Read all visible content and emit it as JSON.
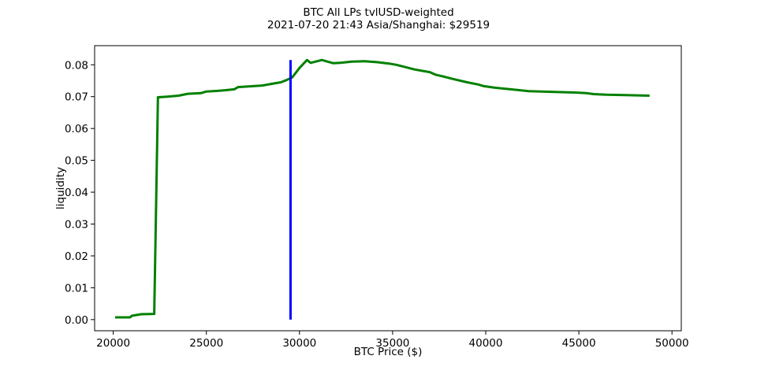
{
  "chart_data": {
    "type": "line",
    "title": "BTC All LPs tvlUSD-weighted",
    "subtitle": "2021-07-20 21:43 Asia/Shanghai: $29519",
    "xlabel": "BTC Price ($)",
    "ylabel": "liquidity",
    "xlim": [
      19000,
      50500
    ],
    "ylim": [
      -0.0035,
      0.086
    ],
    "xticks": [
      20000,
      25000,
      30000,
      35000,
      40000,
      45000,
      50000
    ],
    "yticks": [
      0.0,
      0.01,
      0.02,
      0.03,
      0.04,
      0.05,
      0.06,
      0.07,
      0.08
    ],
    "xtick_labels": [
      "20000",
      "25000",
      "30000",
      "35000",
      "40000",
      "45000",
      "50000"
    ],
    "ytick_labels": [
      "0.00",
      "0.01",
      "0.02",
      "0.03",
      "0.04",
      "0.05",
      "0.06",
      "0.07",
      "0.08"
    ],
    "grid": false,
    "series": [
      {
        "color": "#008000",
        "x": [
          20100,
          20900,
          21000,
          21500,
          22200,
          22400,
          22900,
          23500,
          24000,
          24700,
          25000,
          25600,
          26000,
          26500,
          26700,
          27500,
          28000,
          28500,
          29000,
          29300,
          29600,
          29800,
          30000,
          30400,
          30600,
          31000,
          31200,
          31500,
          31800,
          32200,
          32800,
          33500,
          34200,
          34800,
          35200,
          35600,
          36200,
          37000,
          37300,
          37800,
          38200,
          39000,
          39600,
          39900,
          40500,
          41500,
          42300,
          43500,
          44800,
          45400,
          45800,
          46500,
          47500,
          48800
        ],
        "y": [
          0.0007,
          0.0007,
          0.0012,
          0.0017,
          0.0018,
          0.0698,
          0.07,
          0.0703,
          0.0709,
          0.0711,
          0.0716,
          0.0718,
          0.072,
          0.0723,
          0.073,
          0.0733,
          0.0735,
          0.074,
          0.0745,
          0.0752,
          0.076,
          0.0775,
          0.079,
          0.0815,
          0.0806,
          0.0812,
          0.0815,
          0.081,
          0.0805,
          0.0806,
          0.081,
          0.0811,
          0.0808,
          0.0804,
          0.08,
          0.0794,
          0.0785,
          0.0777,
          0.0769,
          0.0762,
          0.0756,
          0.0745,
          0.0738,
          0.0733,
          0.0728,
          0.0722,
          0.0717,
          0.0715,
          0.0713,
          0.0711,
          0.0708,
          0.0706,
          0.0705,
          0.0703
        ]
      }
    ],
    "marker": {
      "x": 29519,
      "y_range": [
        0.0,
        0.0815
      ],
      "color": "#0000ff"
    }
  }
}
